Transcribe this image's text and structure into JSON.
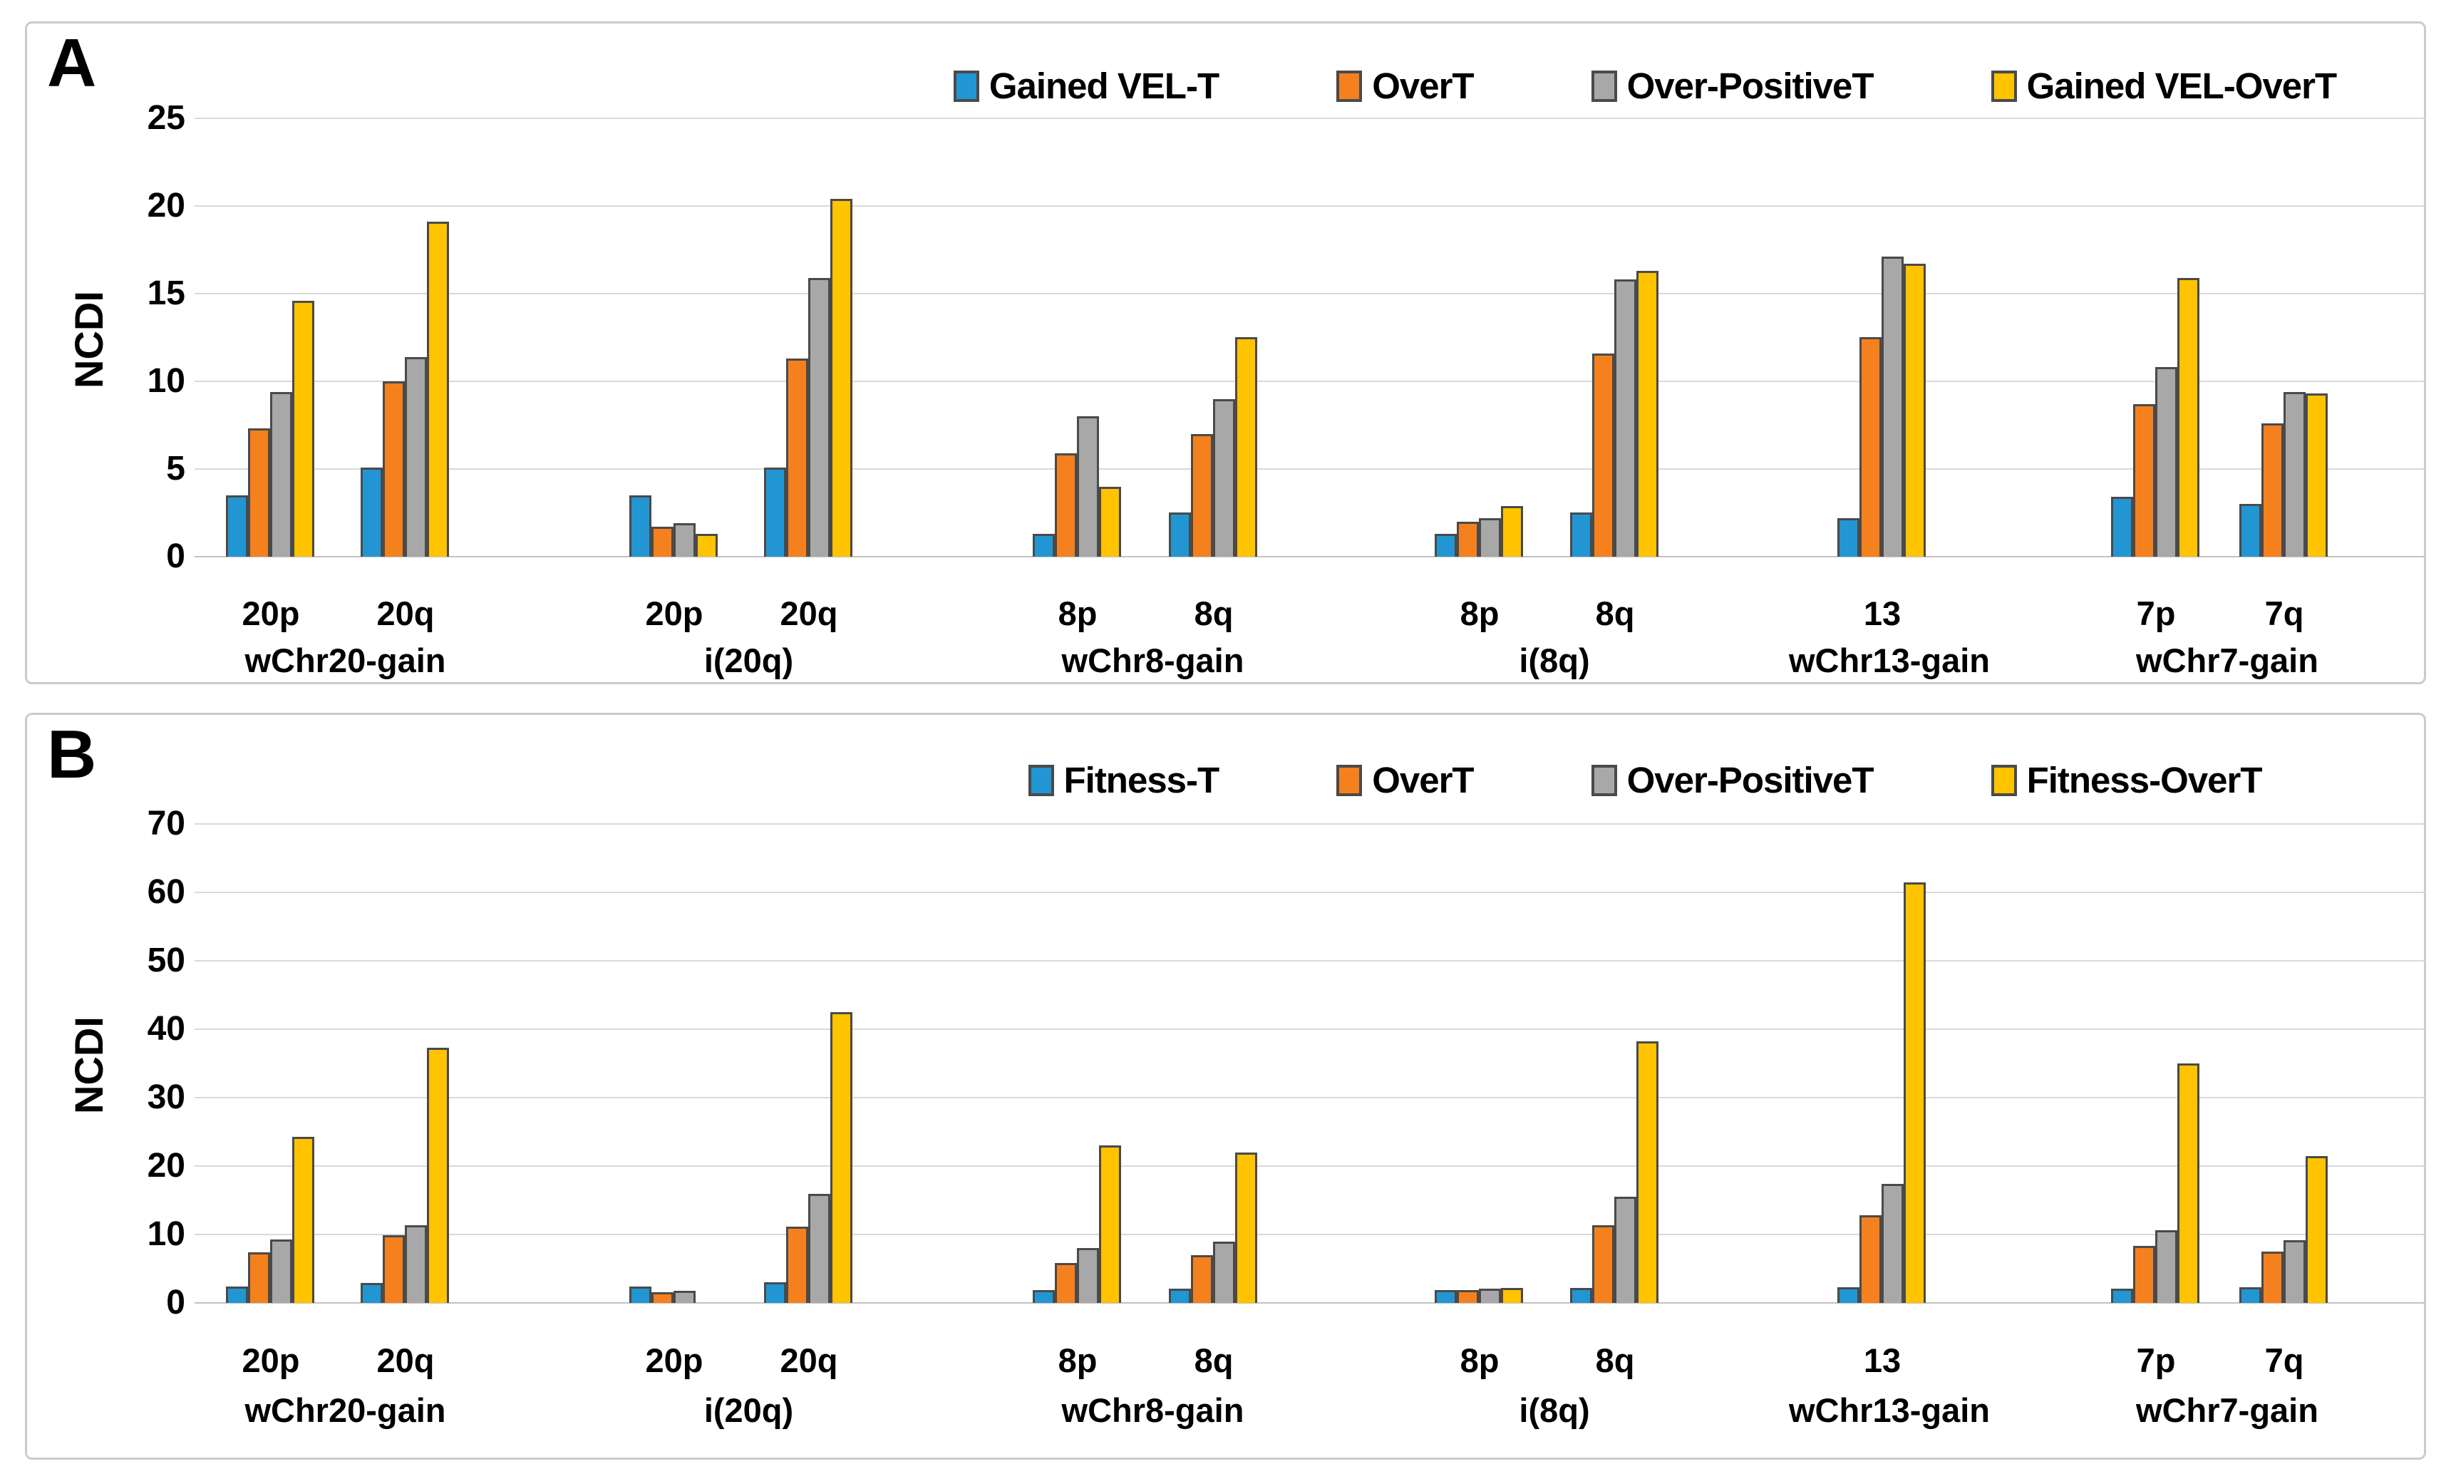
{
  "figure": {
    "background": "#ffffff"
  },
  "series_colors": [
    "#2196d3",
    "#f5801e",
    "#a8a8a8",
    "#ffc300"
  ],
  "bar_border_color": "#4a4a4a",
  "grid_color": "#d9d9d9",
  "panel_border_color": "#cbcbcb",
  "text_color": "#000000",
  "chart_data": {
    "type": "bar",
    "layout": "two stacked panels, clustered bars, legend top, horizontal gridlines",
    "panels": [
      {
        "corner_label": "A",
        "ylabel": "NCDI",
        "ymax": 25,
        "yticks": [
          0,
          5,
          10,
          15,
          20,
          25
        ],
        "legend": [
          "Gained VEL-T",
          "OverT",
          "Over-PositiveT",
          "Gained VEL-OverT"
        ],
        "groups": [
          {
            "label": "wChr20-gain",
            "clusters": [
              {
                "label": "20p",
                "values": [
                  3.5,
                  7.3,
                  9.4,
                  14.6
                ]
              },
              {
                "label": "20q",
                "values": [
                  5.1,
                  10.0,
                  11.4,
                  19.1
                ]
              }
            ]
          },
          {
            "label": "i(20q)",
            "clusters": [
              {
                "label": "20p",
                "values": [
                  3.5,
                  1.7,
                  1.9,
                  1.3
                ]
              },
              {
                "label": "20q",
                "values": [
                  5.1,
                  11.3,
                  15.9,
                  20.4
                ]
              }
            ]
          },
          {
            "label": "wChr8-gain",
            "clusters": [
              {
                "label": "8p",
                "values": [
                  1.3,
                  5.9,
                  8.0,
                  4.0
                ]
              },
              {
                "label": "8q",
                "values": [
                  2.5,
                  7.0,
                  9.0,
                  12.5
                ]
              }
            ]
          },
          {
            "label": "i(8q)",
            "clusters": [
              {
                "label": "8p",
                "values": [
                  1.3,
                  2.0,
                  2.2,
                  2.9
                ]
              },
              {
                "label": "8q",
                "values": [
                  2.5,
                  11.6,
                  15.8,
                  16.3
                ]
              }
            ]
          },
          {
            "label": "wChr13-gain",
            "clusters": [
              {
                "label": "13",
                "values": [
                  2.2,
                  12.5,
                  17.1,
                  16.7
                ]
              }
            ]
          },
          {
            "label": "wChr7-gain",
            "clusters": [
              {
                "label": "7p",
                "values": [
                  3.4,
                  8.7,
                  10.8,
                  15.9
                ]
              },
              {
                "label": "7q",
                "values": [
                  3.0,
                  7.6,
                  9.4,
                  9.3
                ]
              }
            ]
          }
        ]
      },
      {
        "corner_label": "B",
        "ylabel": "NCDI",
        "ymax": 70,
        "yticks": [
          0,
          10,
          20,
          30,
          40,
          50,
          60,
          70
        ],
        "legend": [
          "Fitness-T",
          "OverT",
          "Over-PositiveT",
          "Fitness-OverT"
        ],
        "groups": [
          {
            "label": "wChr20-gain",
            "clusters": [
              {
                "label": "20p",
                "values": [
                  2.4,
                  7.4,
                  9.3,
                  24.3
                ]
              },
              {
                "label": "20q",
                "values": [
                  2.9,
                  9.9,
                  11.4,
                  37.3
                ]
              }
            ]
          },
          {
            "label": "i(20q)",
            "clusters": [
              {
                "label": "20p",
                "values": [
                  2.4,
                  1.6,
                  1.8,
                  0
                ]
              },
              {
                "label": "20q",
                "values": [
                  3.0,
                  11.1,
                  15.9,
                  42.5
                ]
              }
            ]
          },
          {
            "label": "wChr8-gain",
            "clusters": [
              {
                "label": "8p",
                "values": [
                  1.9,
                  5.8,
                  8.0,
                  23.0
                ]
              },
              {
                "label": "8q",
                "values": [
                  2.1,
                  7.0,
                  9.0,
                  22.0
                ]
              }
            ]
          },
          {
            "label": "i(8q)",
            "clusters": [
              {
                "label": "8p",
                "values": [
                  1.9,
                  1.9,
                  2.1,
                  2.2
                ]
              },
              {
                "label": "8q",
                "values": [
                  2.2,
                  11.4,
                  15.5,
                  38.2
                ]
              }
            ]
          },
          {
            "label": "wChr13-gain",
            "clusters": [
              {
                "label": "13",
                "values": [
                  2.3,
                  12.8,
                  17.4,
                  61.5
                ]
              }
            ]
          },
          {
            "label": "wChr7-gain",
            "clusters": [
              {
                "label": "7p",
                "values": [
                  2.1,
                  8.3,
                  10.6,
                  35.0
                ]
              },
              {
                "label": "7q",
                "values": [
                  2.3,
                  7.5,
                  9.2,
                  21.5
                ]
              }
            ]
          }
        ]
      }
    ]
  }
}
